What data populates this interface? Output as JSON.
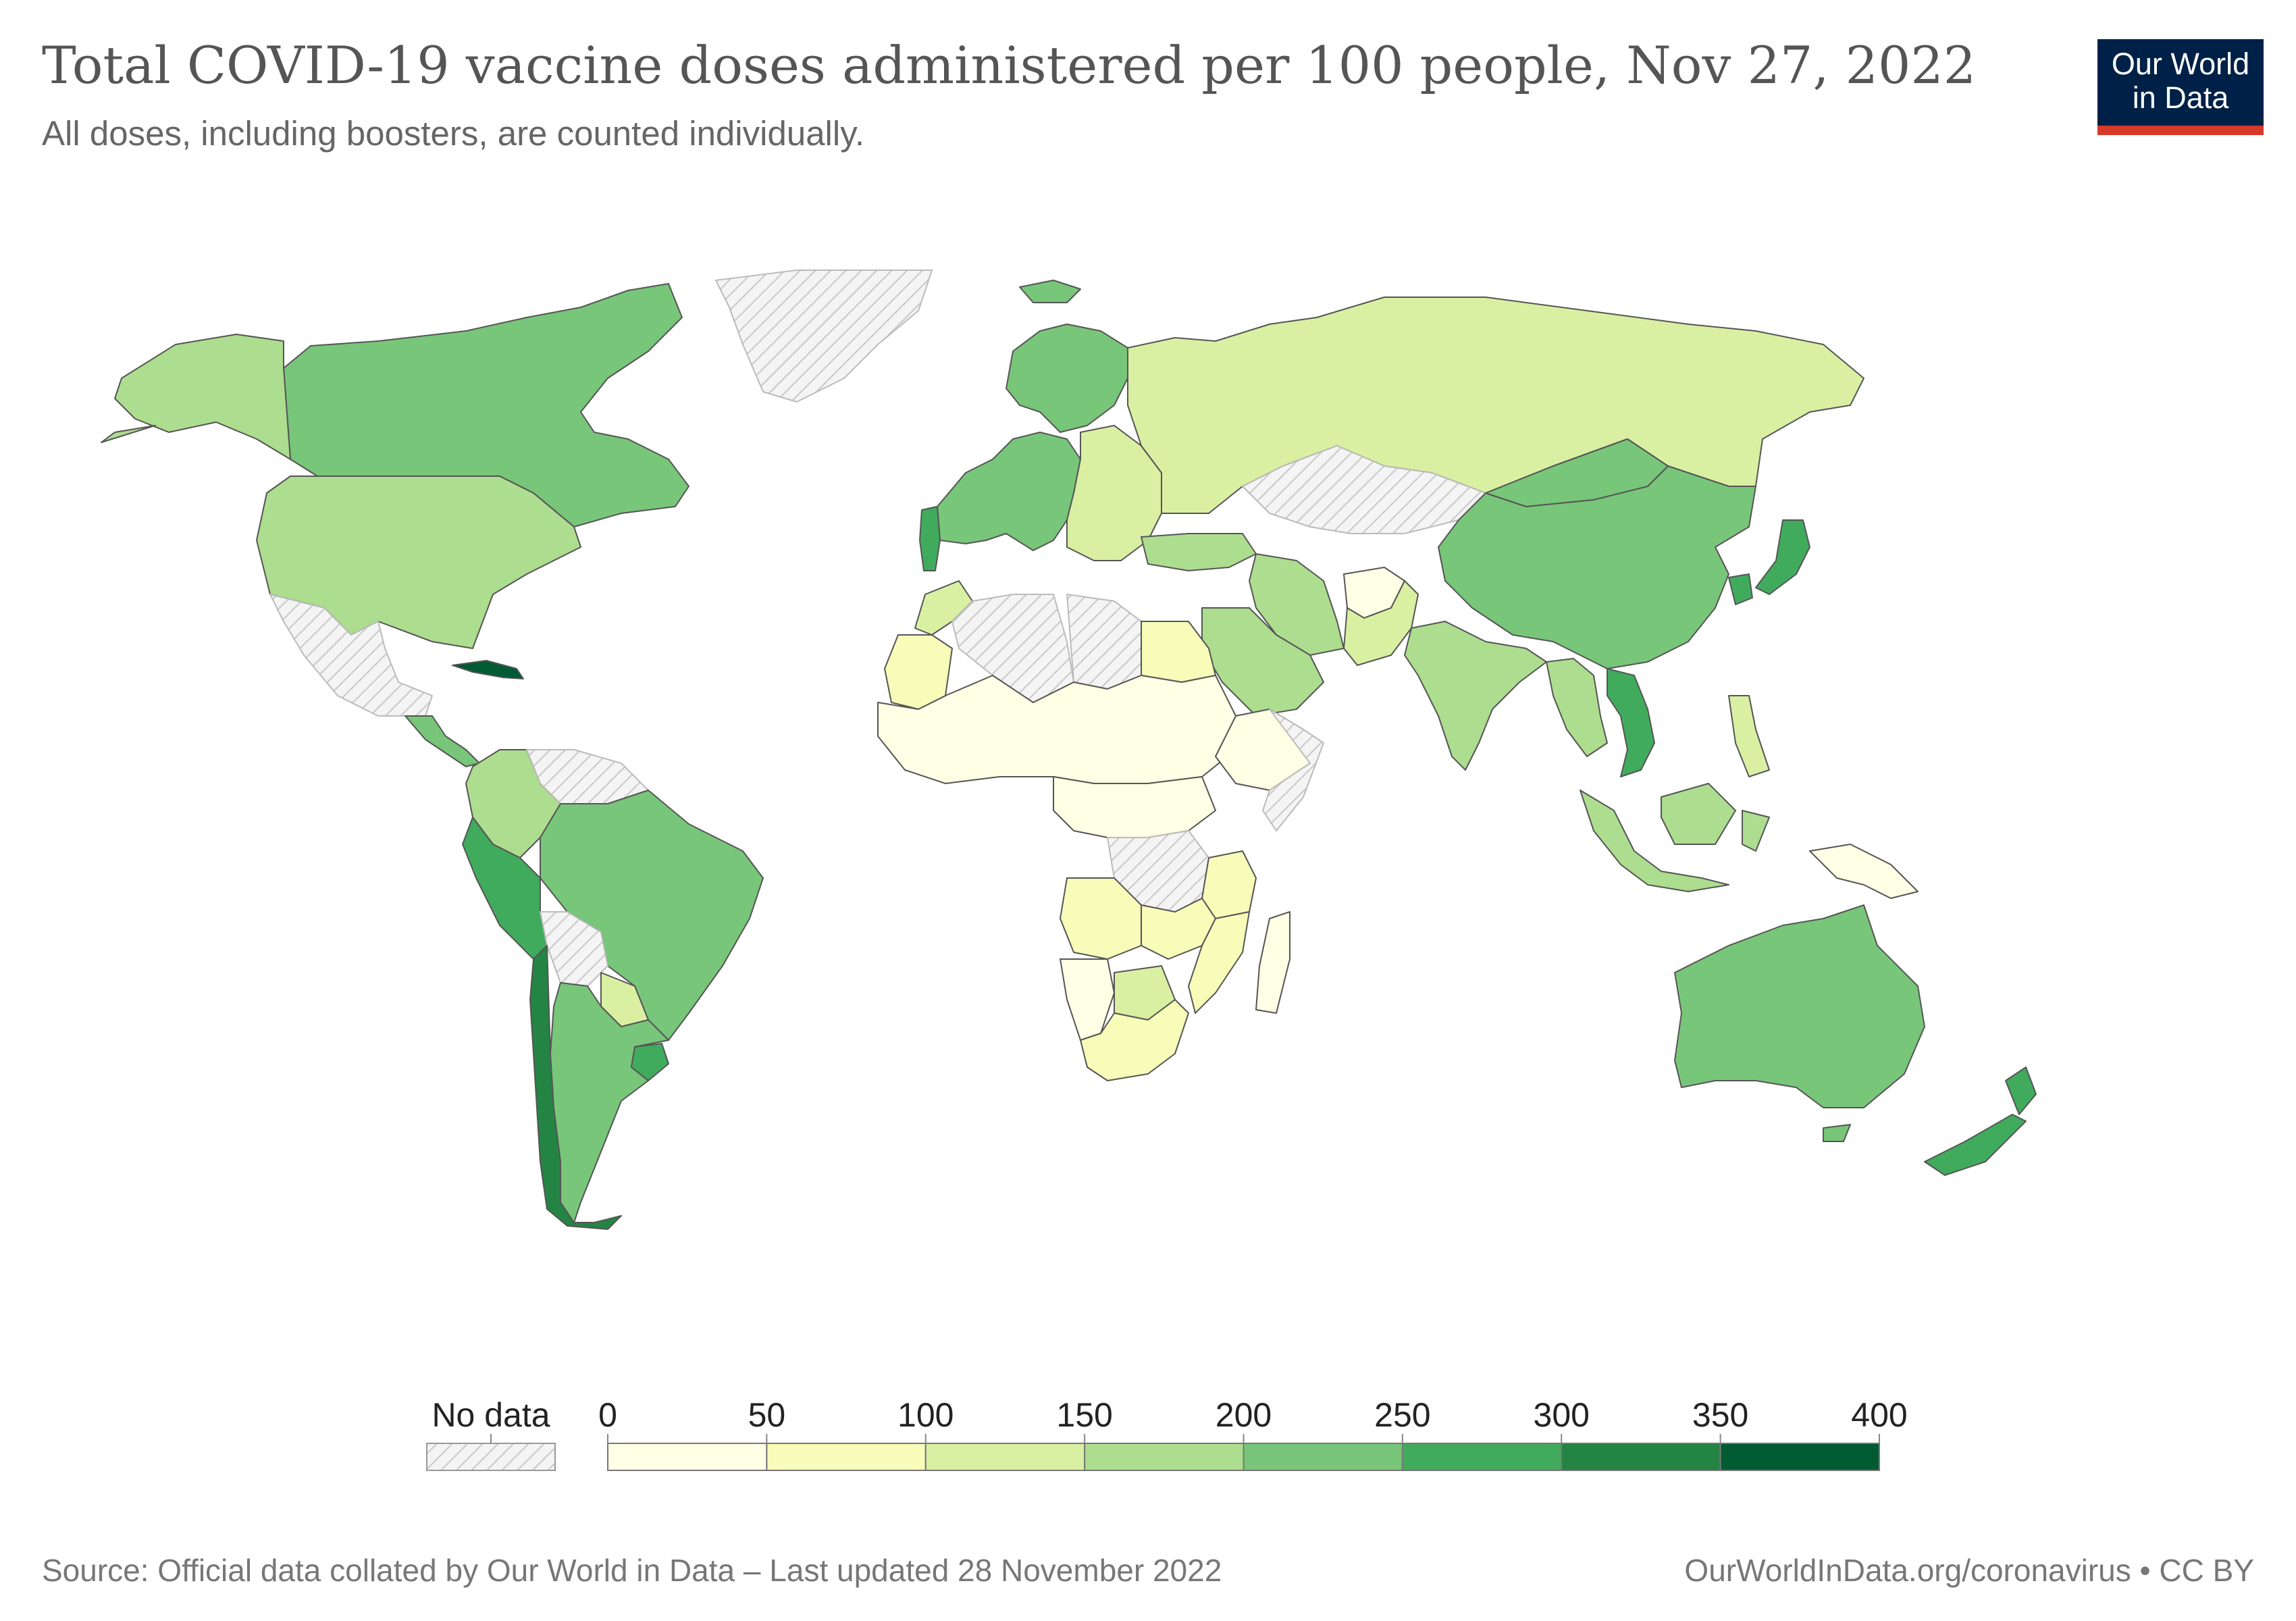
{
  "header": {
    "title": "Total COVID-19 vaccine doses administered per 100 people, Nov 27, 2022",
    "subtitle": "All doses, including boosters, are counted individually."
  },
  "logo": {
    "line1": "Our World",
    "line2": "in Data",
    "background": "#002147",
    "accent": "#d73a2b"
  },
  "legend": {
    "no_data_label": "No data",
    "ticks": [
      "0",
      "50",
      "100",
      "150",
      "200",
      "250",
      "300",
      "350",
      "400"
    ],
    "bins": [
      {
        "from": 0,
        "to": 50,
        "color": "#ffffe5"
      },
      {
        "from": 50,
        "to": 100,
        "color": "#f7fcb9"
      },
      {
        "from": 100,
        "to": 150,
        "color": "#d9f0a3"
      },
      {
        "from": 150,
        "to": 200,
        "color": "#addd8e"
      },
      {
        "from": 200,
        "to": 250,
        "color": "#78c679"
      },
      {
        "from": 250,
        "to": 300,
        "color": "#41ab5d"
      },
      {
        "from": 300,
        "to": 350,
        "color": "#238443"
      },
      {
        "from": 350,
        "to": 400,
        "color": "#005a32"
      }
    ]
  },
  "regions": [
    {
      "name": "Canada",
      "color": "#78c679"
    },
    {
      "name": "Alaska",
      "color": "#addd8e"
    },
    {
      "name": "United States",
      "color": "#addd8e"
    },
    {
      "name": "Greenland",
      "color": "no-data"
    },
    {
      "name": "Mexico",
      "color": "no-data"
    },
    {
      "name": "Cuba",
      "color": "#005a32"
    },
    {
      "name": "Central America",
      "color": "#78c679"
    },
    {
      "name": "Colombia",
      "color": "#addd8e"
    },
    {
      "name": "Venezuela",
      "color": "no-data"
    },
    {
      "name": "Brazil",
      "color": "#78c679"
    },
    {
      "name": "Peru",
      "color": "#41ab5d"
    },
    {
      "name": "Bolivia",
      "color": "no-data"
    },
    {
      "name": "Paraguay",
      "color": "#d9f0a3"
    },
    {
      "name": "Chile",
      "color": "#238443"
    },
    {
      "name": "Argentina",
      "color": "#78c679"
    },
    {
      "name": "Uruguay",
      "color": "#41ab5d"
    },
    {
      "name": "Iceland",
      "color": "#78c679"
    },
    {
      "name": "Scandinavia",
      "color": "#78c679"
    },
    {
      "name": "Western Europe",
      "color": "#78c679"
    },
    {
      "name": "Eastern Europe",
      "color": "#d9f0a3"
    },
    {
      "name": "Portugal",
      "color": "#41ab5d"
    },
    {
      "name": "Russia",
      "color": "#d9f0a3"
    },
    {
      "name": "Kazakhstan",
      "color": "no-data"
    },
    {
      "name": "Turkey",
      "color": "#addd8e"
    },
    {
      "name": "Iran",
      "color": "#addd8e"
    },
    {
      "name": "Saudi Arabia",
      "color": "#addd8e"
    },
    {
      "name": "Afghanistan",
      "color": "#ffffe5"
    },
    {
      "name": "Pakistan",
      "color": "#d9f0a3"
    },
    {
      "name": "India",
      "color": "#addd8e"
    },
    {
      "name": "China",
      "color": "#78c679"
    },
    {
      "name": "Mongolia",
      "color": "#78c679"
    },
    {
      "name": "Japan",
      "color": "#41ab5d"
    },
    {
      "name": "South Korea",
      "color": "#41ab5d"
    },
    {
      "name": "Vietnam",
      "color": "#41ab5d"
    },
    {
      "name": "Southeast Asia",
      "color": "#addd8e"
    },
    {
      "name": "Indonesia",
      "color": "#addd8e"
    },
    {
      "name": "Philippines",
      "color": "#d9f0a3"
    },
    {
      "name": "Papua New Guinea",
      "color": "#ffffe5"
    },
    {
      "name": "Morocco",
      "color": "#d9f0a3"
    },
    {
      "name": "Algeria",
      "color": "no-data"
    },
    {
      "name": "Libya",
      "color": "no-data"
    },
    {
      "name": "Egypt",
      "color": "#f7fcb9"
    },
    {
      "name": "Sahel and West Africa",
      "color": "#ffffe5"
    },
    {
      "name": "Mauritania",
      "color": "#f7fcb9"
    },
    {
      "name": "Ethiopia",
      "color": "#ffffe5"
    },
    {
      "name": "Somalia",
      "color": "no-data"
    },
    {
      "name": "Central Africa",
      "color": "#ffffe5"
    },
    {
      "name": "DR Congo",
      "color": "no-data"
    },
    {
      "name": "Tanzania",
      "color": "#f7fcb9"
    },
    {
      "name": "Angola",
      "color": "#f7fcb9"
    },
    {
      "name": "Zambia",
      "color": "#f7fcb9"
    },
    {
      "name": "Namibia",
      "color": "#ffffe5"
    },
    {
      "name": "Botswana",
      "color": "#d9f0a3"
    },
    {
      "name": "South Africa",
      "color": "#f7fcb9"
    },
    {
      "name": "Mozambique",
      "color": "#f7fcb9"
    },
    {
      "name": "Madagascar",
      "color": "#ffffe5"
    },
    {
      "name": "Australia",
      "color": "#78c679"
    },
    {
      "name": "New Zealand",
      "color": "#41ab5d"
    }
  ],
  "footer": {
    "source": "Source: Official data collated by Our World in Data – Last updated 28 November 2022",
    "link": "OurWorldInData.org/coronavirus • CC BY"
  }
}
